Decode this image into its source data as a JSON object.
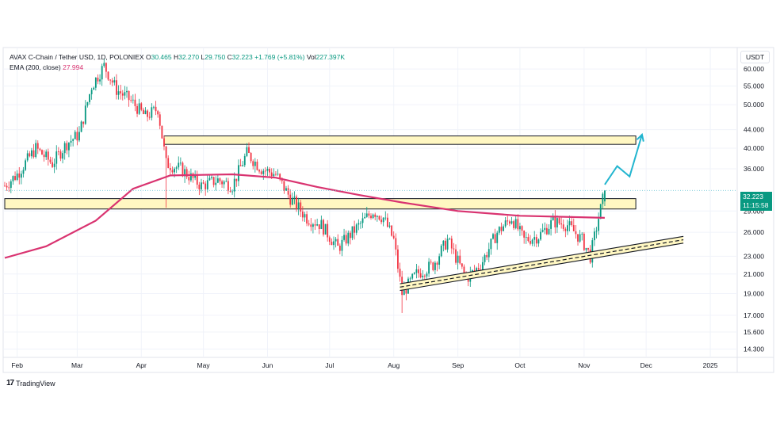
{
  "legend": {
    "symbol": "AVAX C-Chain / Tether USD, 1D, POLONIEX",
    "open_label": "O",
    "open": "30.465",
    "high_label": "H",
    "high": "32.270",
    "low_label": "L",
    "low": "29.750",
    "close_label": "C",
    "close": "32.223",
    "change": "+1.769 (+5.81%)",
    "vol_label": "Vol",
    "vol": "227.397K",
    "ema_label": "EMA (200, close)",
    "ema_value": "27.994"
  },
  "unit": "USDT",
  "price_tag": {
    "price": "32.223",
    "countdown": "11:15:58"
  },
  "brand": {
    "logo": "17",
    "name": "TradingView"
  },
  "colors": {
    "up": "#089981",
    "down": "#f23645",
    "ema": "#d93370",
    "zone_fill": "#fff7c2",
    "arrow": "#22b5cf",
    "price_line": "#74c9d6"
  },
  "chart_data": {
    "type": "candlestick",
    "title": "",
    "y_scale": "log",
    "ylim": [
      13.7,
      67
    ],
    "xlim": [
      "2024-01-26",
      "2025-01-14"
    ],
    "y_ticks": [
      "60.000",
      "55.000",
      "50.000",
      "44.000",
      "40.000",
      "36.000",
      "29.000",
      "26.000",
      "23.000",
      "21.000",
      "19.000",
      "17.000",
      "15.600",
      "14.300"
    ],
    "x_ticks": [
      {
        "date": "2024-02-01",
        "label": "Feb"
      },
      {
        "date": "2024-03-01",
        "label": "Mar"
      },
      {
        "date": "2024-04-01",
        "label": "Apr"
      },
      {
        "date": "2024-05-01",
        "label": "May"
      },
      {
        "date": "2024-06-01",
        "label": "Jun"
      },
      {
        "date": "2024-07-01",
        "label": "Jul"
      },
      {
        "date": "2024-08-01",
        "label": "Aug"
      },
      {
        "date": "2024-09-01",
        "label": "Sep"
      },
      {
        "date": "2024-10-01",
        "label": "Oct"
      },
      {
        "date": "2024-11-01",
        "label": "Nov"
      },
      {
        "date": "2024-12-01",
        "label": "Dec"
      },
      {
        "date": "2025-01-01",
        "label": "2025"
      }
    ],
    "price_path": [
      [
        "2024-01-26",
        33
      ],
      [
        "2024-02-01",
        35
      ],
      [
        "2024-02-10",
        40
      ],
      [
        "2024-02-18",
        37
      ],
      [
        "2024-02-25",
        41
      ],
      [
        "2024-03-02",
        43
      ],
      [
        "2024-03-08",
        55
      ],
      [
        "2024-03-14",
        61
      ],
      [
        "2024-03-20",
        54
      ],
      [
        "2024-03-27",
        51
      ],
      [
        "2024-04-03",
        47
      ],
      [
        "2024-04-09",
        49
      ],
      [
        "2024-04-13",
        37
      ],
      [
        "2024-04-20",
        36
      ],
      [
        "2024-04-30",
        33
      ],
      [
        "2024-05-08",
        34
      ],
      [
        "2024-05-15",
        33
      ],
      [
        "2024-05-22",
        39
      ],
      [
        "2024-05-29",
        36
      ],
      [
        "2024-06-05",
        35
      ],
      [
        "2024-06-12",
        31
      ],
      [
        "2024-06-20",
        28
      ],
      [
        "2024-06-27",
        27
      ],
      [
        "2024-07-05",
        24
      ],
      [
        "2024-07-12",
        26
      ],
      [
        "2024-07-22",
        29
      ],
      [
        "2024-07-27",
        28
      ],
      [
        "2024-08-01",
        25
      ],
      [
        "2024-08-05",
        19
      ],
      [
        "2024-08-12",
        21
      ],
      [
        "2024-08-20",
        22
      ],
      [
        "2024-08-27",
        25
      ],
      [
        "2024-09-05",
        20.5
      ],
      [
        "2024-09-12",
        22
      ],
      [
        "2024-09-20",
        26
      ],
      [
        "2024-09-27",
        28
      ],
      [
        "2024-10-03",
        25
      ],
      [
        "2024-10-10",
        25.5
      ],
      [
        "2024-10-17",
        27.5
      ],
      [
        "2024-10-24",
        27
      ],
      [
        "2024-10-31",
        25
      ],
      [
        "2024-11-04",
        23
      ],
      [
        "2024-11-08",
        28
      ],
      [
        "2024-11-11",
        32.2
      ]
    ],
    "ema_200": [
      [
        "2024-01-26",
        22.8
      ],
      [
        "2024-02-15",
        24.2
      ],
      [
        "2024-03-10",
        27.6
      ],
      [
        "2024-03-28",
        32.5
      ],
      [
        "2024-04-15",
        34.8
      ],
      [
        "2024-05-15",
        35.0
      ],
      [
        "2024-06-05",
        34.4
      ],
      [
        "2024-06-25",
        32.8
      ],
      [
        "2024-07-15",
        31.5
      ],
      [
        "2024-08-05",
        30.3
      ],
      [
        "2024-09-01",
        29.0
      ],
      [
        "2024-10-01",
        28.3
      ],
      [
        "2024-11-11",
        28.0
      ]
    ],
    "resistance_zone": {
      "y_low": 40.8,
      "y_high": 42.6,
      "x_start": "2024-04-12",
      "x_end": "2024-11-26"
    },
    "support_zone": {
      "y_low": 29.3,
      "y_high": 30.9,
      "x_start": "2024-01-26",
      "x_end": "2024-11-26"
    },
    "trend_channel": {
      "start": [
        "2024-08-04",
        19.3
      ],
      "end": [
        "2024-12-19",
        24.6
      ],
      "width": 0.035
    },
    "projection_arrow": [
      [
        "2024-11-11",
        33.2
      ],
      [
        "2024-11-17",
        36.5
      ],
      [
        "2024-11-23",
        34.6
      ],
      [
        "2024-11-29",
        42.9
      ]
    ],
    "last_price": 32.223
  }
}
